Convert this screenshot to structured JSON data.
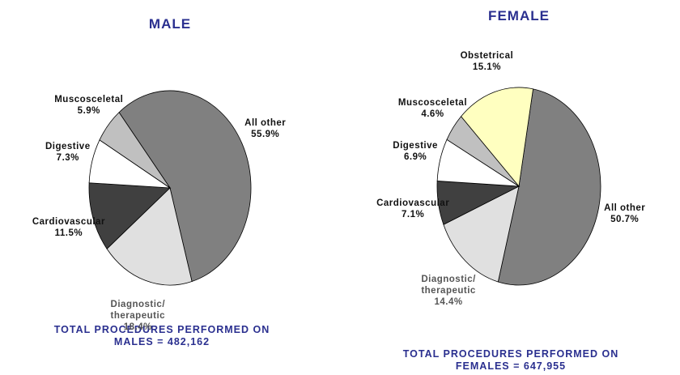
{
  "chart_data": [
    {
      "type": "pie",
      "title": "MALE",
      "categories": [
        "All other",
        "Diagnostic/ therapeutic",
        "Cardiovascular",
        "Digestive",
        "Muscosceletal"
      ],
      "values": [
        55.9,
        18.4,
        11.5,
        7.3,
        5.9
      ],
      "value_labels": [
        "55.9%",
        "18.4%",
        "11.5%",
        "7.3%",
        "5.9%"
      ],
      "colors": [
        "#808080",
        "#e0e0e0",
        "#404040",
        "#ffffff",
        "#c0c0c0"
      ],
      "note": "TOTAL PROCEDURES PERFORMED ON MALES = 482,162"
    },
    {
      "type": "pie",
      "title": "FEMALE",
      "categories": [
        "All other",
        "Diagnostic/ therapeutic",
        "Cardiovascular",
        "Digestive",
        "Muscosceletal",
        "Obstetrical"
      ],
      "values": [
        50.7,
        14.4,
        7.1,
        6.9,
        4.6,
        15.1
      ],
      "value_labels": [
        "50.7%",
        "14.4%",
        "7.1%",
        "6.9%",
        "4.6%",
        "15.1%"
      ],
      "colors": [
        "#808080",
        "#e0e0e0",
        "#404040",
        "#ffffff",
        "#c0c0c0",
        "#ffffc0"
      ],
      "note": "TOTAL PROCEDURES PERFORMED ON FEMALES = 647,955"
    }
  ]
}
